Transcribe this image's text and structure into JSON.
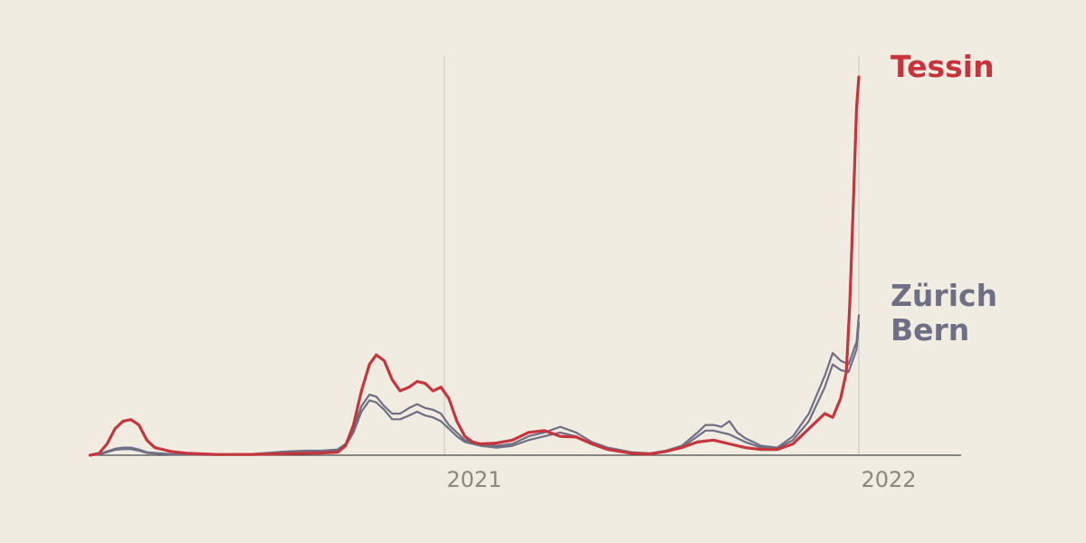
{
  "chart_data": {
    "type": "line",
    "title": "",
    "xlabel": "",
    "ylabel": "",
    "x_ticks": [
      {
        "date": "2021-01-01",
        "label": "2021"
      },
      {
        "date": "2022-01-01",
        "label": "2022"
      }
    ],
    "xlim": [
      "2020-02-24",
      "2022-05-01"
    ],
    "ylim": [
      0,
      100
    ],
    "grid": "vertical-at-ticks",
    "legend": "direct-labels-right",
    "series": [
      {
        "name": "Tessin",
        "color": "#c8343c",
        "stroke": "thick",
        "points": [
          [
            "2020-02-24",
            0
          ],
          [
            "2020-03-03",
            0.5
          ],
          [
            "2020-03-10",
            3
          ],
          [
            "2020-03-17",
            7
          ],
          [
            "2020-03-24",
            9
          ],
          [
            "2020-03-31",
            9.4
          ],
          [
            "2020-04-07",
            8
          ],
          [
            "2020-04-14",
            4
          ],
          [
            "2020-04-21",
            2
          ],
          [
            "2020-05-05",
            1
          ],
          [
            "2020-05-19",
            0.5
          ],
          [
            "2020-06-15",
            0.2
          ],
          [
            "2020-07-15",
            0.2
          ],
          [
            "2020-08-15",
            0.4
          ],
          [
            "2020-09-15",
            0.6
          ],
          [
            "2020-09-29",
            0.8
          ],
          [
            "2020-10-06",
            2.5
          ],
          [
            "2020-10-13",
            8
          ],
          [
            "2020-10-20",
            17
          ],
          [
            "2020-10-27",
            24
          ],
          [
            "2020-11-02",
            26.5
          ],
          [
            "2020-11-09",
            25
          ],
          [
            "2020-11-16",
            20
          ],
          [
            "2020-11-23",
            17
          ],
          [
            "2020-12-01",
            18
          ],
          [
            "2020-12-08",
            19.5
          ],
          [
            "2020-12-15",
            19
          ],
          [
            "2020-12-22",
            17
          ],
          [
            "2020-12-29",
            18
          ],
          [
            "2021-01-05",
            15
          ],
          [
            "2021-01-12",
            9
          ],
          [
            "2021-01-19",
            5
          ],
          [
            "2021-01-26",
            3.5
          ],
          [
            "2021-02-02",
            3
          ],
          [
            "2021-02-16",
            3.2
          ],
          [
            "2021-03-02",
            4
          ],
          [
            "2021-03-16",
            6
          ],
          [
            "2021-03-30",
            6.5
          ],
          [
            "2021-04-13",
            5
          ],
          [
            "2021-04-27",
            4.8
          ],
          [
            "2021-05-11",
            3
          ],
          [
            "2021-05-25",
            1.5
          ],
          [
            "2021-06-15",
            0.5
          ],
          [
            "2021-07-01",
            0.3
          ],
          [
            "2021-07-15",
            1
          ],
          [
            "2021-07-29",
            2
          ],
          [
            "2021-08-12",
            3.5
          ],
          [
            "2021-08-26",
            4
          ],
          [
            "2021-09-09",
            3
          ],
          [
            "2021-09-23",
            2
          ],
          [
            "2021-10-07",
            1.5
          ],
          [
            "2021-10-21",
            1.5
          ],
          [
            "2021-11-04",
            3
          ],
          [
            "2021-11-18",
            7
          ],
          [
            "2021-12-02",
            11
          ],
          [
            "2021-12-09",
            10
          ],
          [
            "2021-12-16",
            15
          ],
          [
            "2021-12-21",
            22
          ],
          [
            "2021-12-24",
            40
          ],
          [
            "2021-12-27",
            65
          ],
          [
            "2021-12-30",
            92
          ],
          [
            "2022-01-01",
            100
          ]
        ]
      },
      {
        "name": "Zürich",
        "color": "#6e6e84",
        "stroke": "thin",
        "points": [
          [
            "2020-02-24",
            0
          ],
          [
            "2020-03-03",
            0.3
          ],
          [
            "2020-03-10",
            1
          ],
          [
            "2020-03-17",
            1.7
          ],
          [
            "2020-03-24",
            2
          ],
          [
            "2020-03-31",
            2
          ],
          [
            "2020-04-07",
            1.5
          ],
          [
            "2020-04-14",
            0.8
          ],
          [
            "2020-05-05",
            0.3
          ],
          [
            "2020-06-15",
            0.2
          ],
          [
            "2020-07-15",
            0.3
          ],
          [
            "2020-08-15",
            1
          ],
          [
            "2020-09-01",
            1.2
          ],
          [
            "2020-09-15",
            1.2
          ],
          [
            "2020-09-29",
            1.5
          ],
          [
            "2020-10-06",
            3
          ],
          [
            "2020-10-13",
            7
          ],
          [
            "2020-10-20",
            13
          ],
          [
            "2020-10-27",
            16
          ],
          [
            "2020-11-02",
            15.5
          ],
          [
            "2020-11-09",
            13
          ],
          [
            "2020-11-16",
            11
          ],
          [
            "2020-11-23",
            11
          ],
          [
            "2020-12-01",
            12.5
          ],
          [
            "2020-12-08",
            13.5
          ],
          [
            "2020-12-15",
            12.5
          ],
          [
            "2020-12-22",
            12
          ],
          [
            "2020-12-29",
            11
          ],
          [
            "2021-01-05",
            8
          ],
          [
            "2021-01-12",
            6
          ],
          [
            "2021-01-19",
            4
          ],
          [
            "2021-02-02",
            3
          ],
          [
            "2021-02-16",
            2.5
          ],
          [
            "2021-03-02",
            3
          ],
          [
            "2021-03-16",
            5
          ],
          [
            "2021-03-30",
            6
          ],
          [
            "2021-04-13",
            7.5
          ],
          [
            "2021-04-27",
            6
          ],
          [
            "2021-05-11",
            3.5
          ],
          [
            "2021-05-25",
            2
          ],
          [
            "2021-06-15",
            0.8
          ],
          [
            "2021-07-01",
            0.5
          ],
          [
            "2021-07-15",
            1.2
          ],
          [
            "2021-07-29",
            2.5
          ],
          [
            "2021-08-12",
            6
          ],
          [
            "2021-08-19",
            8
          ],
          [
            "2021-08-26",
            8
          ],
          [
            "2021-09-02",
            7.5
          ],
          [
            "2021-09-09",
            9
          ],
          [
            "2021-09-16",
            6
          ],
          [
            "2021-09-23",
            4.5
          ],
          [
            "2021-10-07",
            2.5
          ],
          [
            "2021-10-21",
            2
          ],
          [
            "2021-11-04",
            5
          ],
          [
            "2021-11-18",
            11
          ],
          [
            "2021-12-02",
            21
          ],
          [
            "2021-12-09",
            27
          ],
          [
            "2021-12-16",
            25
          ],
          [
            "2021-12-23",
            24
          ],
          [
            "2021-12-30",
            30
          ],
          [
            "2022-01-01",
            37
          ]
        ]
      },
      {
        "name": "Bern",
        "color": "#6e6e84",
        "stroke": "thin",
        "points": [
          [
            "2020-02-24",
            0
          ],
          [
            "2020-03-03",
            0.2
          ],
          [
            "2020-03-10",
            0.8
          ],
          [
            "2020-03-17",
            1.4
          ],
          [
            "2020-03-24",
            1.6
          ],
          [
            "2020-03-31",
            1.6
          ],
          [
            "2020-04-07",
            1.2
          ],
          [
            "2020-04-14",
            0.6
          ],
          [
            "2020-05-05",
            0.2
          ],
          [
            "2020-06-15",
            0.1
          ],
          [
            "2020-07-15",
            0.2
          ],
          [
            "2020-08-15",
            0.7
          ],
          [
            "2020-09-01",
            0.9
          ],
          [
            "2020-09-15",
            1
          ],
          [
            "2020-09-29",
            1.3
          ],
          [
            "2020-10-06",
            2.5
          ],
          [
            "2020-10-13",
            6
          ],
          [
            "2020-10-20",
            11.5
          ],
          [
            "2020-10-27",
            14.5
          ],
          [
            "2020-11-02",
            14
          ],
          [
            "2020-11-09",
            12
          ],
          [
            "2020-11-16",
            9.5
          ],
          [
            "2020-11-23",
            9.5
          ],
          [
            "2020-12-01",
            10.5
          ],
          [
            "2020-12-08",
            11.5
          ],
          [
            "2020-12-15",
            10.5
          ],
          [
            "2020-12-22",
            10
          ],
          [
            "2020-12-29",
            9
          ],
          [
            "2021-01-05",
            7
          ],
          [
            "2021-01-12",
            5
          ],
          [
            "2021-01-19",
            3.5
          ],
          [
            "2021-02-02",
            2.5
          ],
          [
            "2021-02-16",
            2
          ],
          [
            "2021-03-02",
            2.5
          ],
          [
            "2021-03-16",
            4
          ],
          [
            "2021-03-30",
            5
          ],
          [
            "2021-04-13",
            6
          ],
          [
            "2021-04-27",
            5
          ],
          [
            "2021-05-11",
            3
          ],
          [
            "2021-05-25",
            1.6
          ],
          [
            "2021-06-15",
            0.6
          ],
          [
            "2021-07-01",
            0.4
          ],
          [
            "2021-07-15",
            1
          ],
          [
            "2021-07-29",
            2
          ],
          [
            "2021-08-12",
            5
          ],
          [
            "2021-08-19",
            6.5
          ],
          [
            "2021-08-26",
            6.5
          ],
          [
            "2021-09-02",
            6
          ],
          [
            "2021-09-09",
            5.5
          ],
          [
            "2021-09-16",
            4.5
          ],
          [
            "2021-09-23",
            3.5
          ],
          [
            "2021-10-07",
            2
          ],
          [
            "2021-10-21",
            1.8
          ],
          [
            "2021-11-04",
            4
          ],
          [
            "2021-11-18",
            9
          ],
          [
            "2021-12-02",
            18
          ],
          [
            "2021-12-09",
            24
          ],
          [
            "2021-12-16",
            22.5
          ],
          [
            "2021-12-23",
            22
          ],
          [
            "2021-12-30",
            28
          ],
          [
            "2022-01-01",
            35
          ]
        ]
      }
    ]
  }
}
